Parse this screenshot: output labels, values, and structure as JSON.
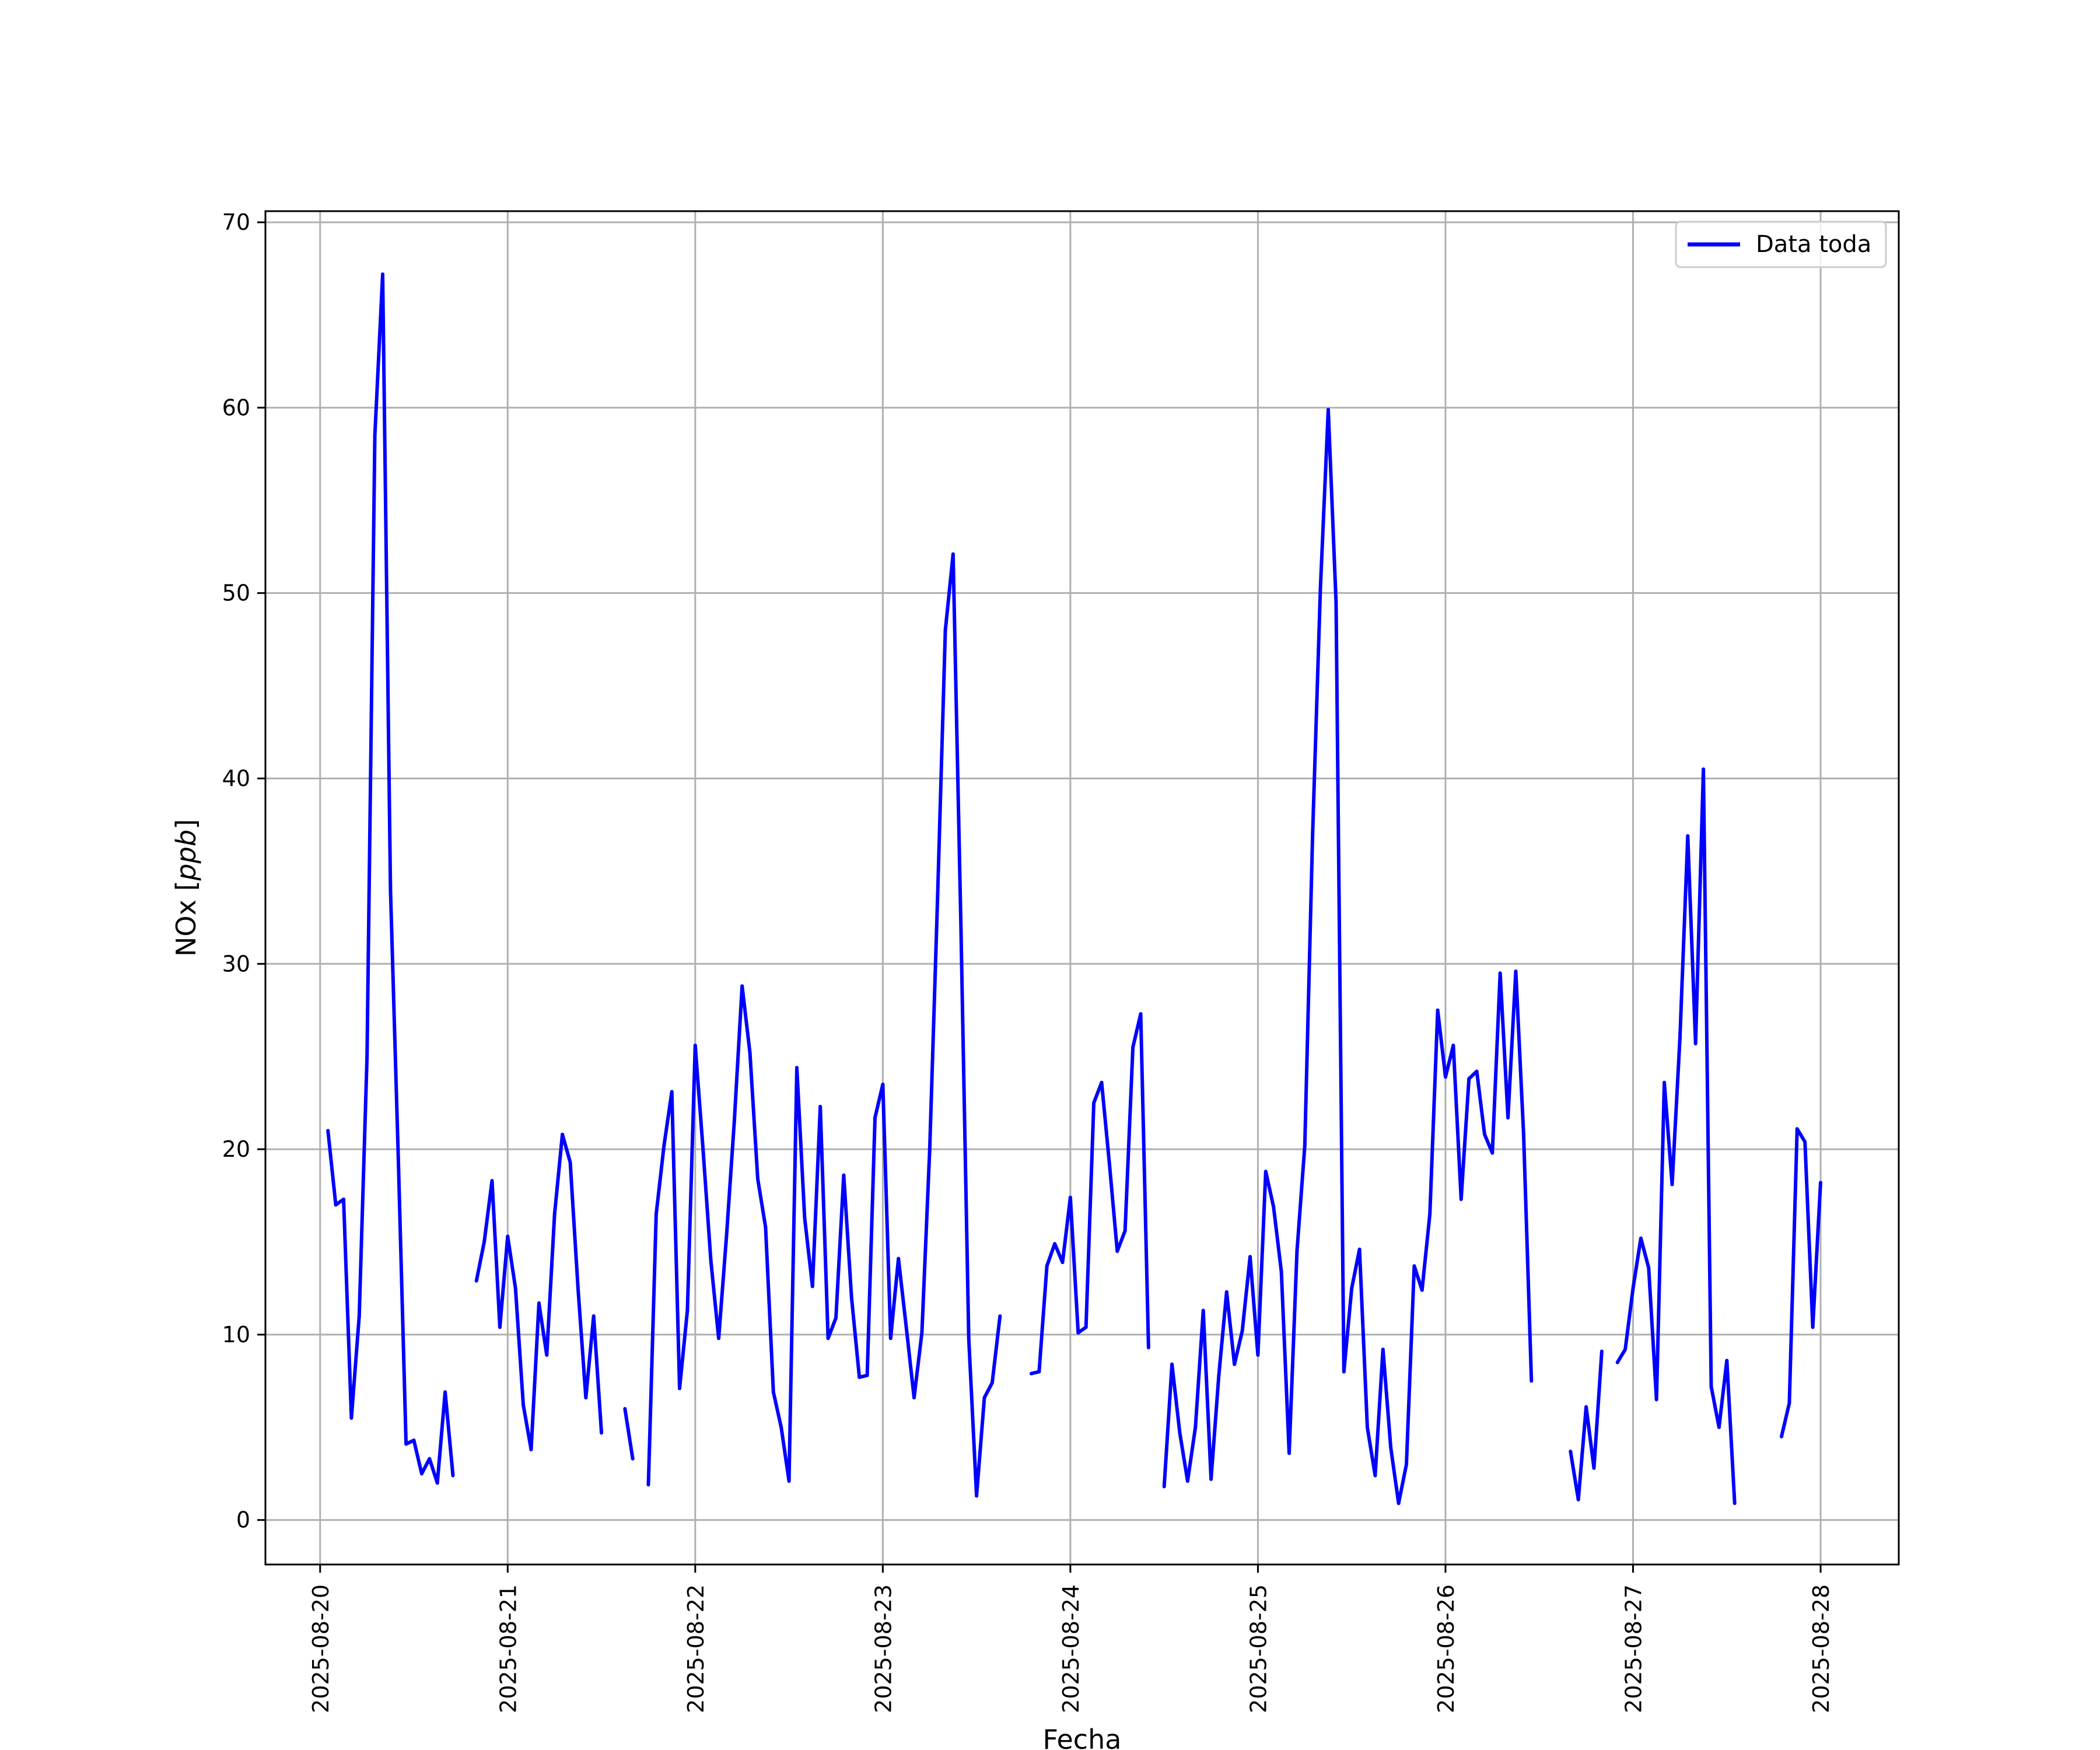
{
  "chart_data": {
    "type": "line",
    "title": "",
    "xlabel": "Fecha",
    "ylabel_text": "NOx [",
    "ylabel_unit": "ppb",
    "ylabel_close": "]",
    "x_ticks": [
      "2025-08-20",
      "2025-08-21",
      "2025-08-22",
      "2025-08-23",
      "2025-08-24",
      "2025-08-25",
      "2025-08-26",
      "2025-08-27",
      "2025-08-28"
    ],
    "y_ticks": [
      "0",
      "10",
      "20",
      "30",
      "40",
      "50",
      "60",
      "70"
    ],
    "xlim": [
      "2025-08-19T17:00",
      "2025-08-28T10:00"
    ],
    "ylim": [
      -2.4,
      70.6
    ],
    "grid": true,
    "legend": {
      "position": "top-right",
      "entries": [
        "Data toda"
      ]
    },
    "series": [
      {
        "name": "Data toda",
        "color": "#0000ff",
        "segments": [
          [
            [
              "2025-08-20T01:00",
              21.0
            ],
            [
              "2025-08-20T02:00",
              17.0
            ],
            [
              "2025-08-20T03:00",
              17.3
            ],
            [
              "2025-08-20T04:00",
              5.5
            ],
            [
              "2025-08-20T05:00",
              11.0
            ],
            [
              "2025-08-20T06:00",
              25.0
            ],
            [
              "2025-08-20T07:00",
              58.5
            ],
            [
              "2025-08-20T08:00",
              67.2
            ],
            [
              "2025-08-20T09:00",
              34.0
            ],
            [
              "2025-08-20T10:00",
              19.5
            ],
            [
              "2025-08-20T11:00",
              4.1
            ],
            [
              "2025-08-20T12:00",
              4.3
            ],
            [
              "2025-08-20T13:00",
              2.5
            ],
            [
              "2025-08-20T14:00",
              3.3
            ],
            [
              "2025-08-20T15:00",
              2.0
            ],
            [
              "2025-08-20T16:00",
              6.9
            ],
            [
              "2025-08-20T17:00",
              2.4
            ]
          ],
          [
            [
              "2025-08-20T20:00",
              12.9
            ],
            [
              "2025-08-20T21:00",
              15.0
            ],
            [
              "2025-08-20T22:00",
              18.3
            ],
            [
              "2025-08-20T23:00",
              10.4
            ],
            [
              "2025-08-21T00:00",
              15.3
            ],
            [
              "2025-08-21T01:00",
              12.5
            ],
            [
              "2025-08-21T02:00",
              6.2
            ],
            [
              "2025-08-21T03:00",
              3.8
            ],
            [
              "2025-08-21T04:00",
              11.7
            ],
            [
              "2025-08-21T05:00",
              8.9
            ],
            [
              "2025-08-21T06:00",
              16.5
            ],
            [
              "2025-08-21T07:00",
              20.8
            ],
            [
              "2025-08-21T08:00",
              19.3
            ],
            [
              "2025-08-21T09:00",
              12.5
            ],
            [
              "2025-08-21T10:00",
              6.6
            ],
            [
              "2025-08-21T11:00",
              11.0
            ],
            [
              "2025-08-21T12:00",
              4.7
            ]
          ],
          [
            [
              "2025-08-21T15:00",
              6.0
            ],
            [
              "2025-08-21T16:00",
              3.3
            ]
          ],
          [
            [
              "2025-08-21T18:00",
              1.9
            ],
            [
              "2025-08-21T19:00",
              16.5
            ],
            [
              "2025-08-21T20:00",
              20.2
            ],
            [
              "2025-08-21T21:00",
              23.1
            ],
            [
              "2025-08-21T22:00",
              7.1
            ],
            [
              "2025-08-21T23:00",
              11.3
            ],
            [
              "2025-08-22T00:00",
              25.6
            ],
            [
              "2025-08-22T01:00",
              20.0
            ],
            [
              "2025-08-22T02:00",
              14.0
            ],
            [
              "2025-08-22T03:00",
              9.8
            ],
            [
              "2025-08-22T04:00",
              15.3
            ],
            [
              "2025-08-22T05:00",
              21.5
            ],
            [
              "2025-08-22T06:00",
              28.8
            ],
            [
              "2025-08-22T07:00",
              25.2
            ],
            [
              "2025-08-22T08:00",
              18.4
            ],
            [
              "2025-08-22T09:00",
              15.8
            ],
            [
              "2025-08-22T10:00",
              6.9
            ],
            [
              "2025-08-22T11:00",
              5.0
            ],
            [
              "2025-08-22T12:00",
              2.1
            ],
            [
              "2025-08-22T13:00",
              24.4
            ],
            [
              "2025-08-22T14:00",
              16.3
            ],
            [
              "2025-08-22T15:00",
              12.6
            ],
            [
              "2025-08-22T16:00",
              22.3
            ],
            [
              "2025-08-22T17:00",
              9.8
            ],
            [
              "2025-08-22T18:00",
              10.9
            ],
            [
              "2025-08-22T19:00",
              18.6
            ],
            [
              "2025-08-22T20:00",
              12.0
            ],
            [
              "2025-08-22T21:00",
              7.7
            ],
            [
              "2025-08-22T22:00",
              7.8
            ],
            [
              "2025-08-22T23:00",
              21.7
            ],
            [
              "2025-08-23T00:00",
              23.5
            ],
            [
              "2025-08-23T01:00",
              9.8
            ],
            [
              "2025-08-23T02:00",
              14.1
            ],
            [
              "2025-08-23T03:00",
              10.4
            ],
            [
              "2025-08-23T04:00",
              6.6
            ],
            [
              "2025-08-23T05:00",
              10.1
            ],
            [
              "2025-08-23T06:00",
              20.0
            ],
            [
              "2025-08-23T07:00",
              33.5
            ],
            [
              "2025-08-23T08:00",
              48.0
            ],
            [
              "2025-08-23T09:00",
              52.1
            ],
            [
              "2025-08-23T10:00",
              32.0
            ],
            [
              "2025-08-23T11:00",
              9.8
            ],
            [
              "2025-08-23T12:00",
              1.3
            ],
            [
              "2025-08-23T13:00",
              6.6
            ],
            [
              "2025-08-23T14:00",
              7.4
            ],
            [
              "2025-08-23T15:00",
              11.0
            ]
          ],
          [
            [
              "2025-08-23T19:00",
              7.9
            ],
            [
              "2025-08-23T20:00",
              8.0
            ],
            [
              "2025-08-23T21:00",
              13.7
            ],
            [
              "2025-08-23T22:00",
              14.9
            ],
            [
              "2025-08-23T23:00",
              13.9
            ],
            [
              "2025-08-24T00:00",
              17.4
            ],
            [
              "2025-08-24T01:00",
              10.1
            ],
            [
              "2025-08-24T02:00",
              10.4
            ],
            [
              "2025-08-24T03:00",
              22.5
            ],
            [
              "2025-08-24T04:00",
              23.6
            ],
            [
              "2025-08-24T05:00",
              19.2
            ],
            [
              "2025-08-24T06:00",
              14.5
            ],
            [
              "2025-08-24T07:00",
              15.6
            ],
            [
              "2025-08-24T08:00",
              25.5
            ],
            [
              "2025-08-24T09:00",
              27.3
            ],
            [
              "2025-08-24T10:00",
              9.3
            ]
          ],
          [
            [
              "2025-08-24T12:00",
              1.8
            ],
            [
              "2025-08-24T13:00",
              8.4
            ],
            [
              "2025-08-24T14:00",
              4.7
            ],
            [
              "2025-08-24T15:00",
              2.1
            ],
            [
              "2025-08-24T16:00",
              5.0
            ],
            [
              "2025-08-24T17:00",
              11.3
            ],
            [
              "2025-08-24T18:00",
              2.2
            ],
            [
              "2025-08-24T19:00",
              7.8
            ],
            [
              "2025-08-24T20:00",
              12.3
            ],
            [
              "2025-08-24T21:00",
              8.4
            ],
            [
              "2025-08-24T22:00",
              10.2
            ],
            [
              "2025-08-24T23:00",
              14.2
            ],
            [
              "2025-08-25T00:00",
              8.9
            ],
            [
              "2025-08-25T01:00",
              18.8
            ],
            [
              "2025-08-25T02:00",
              16.9
            ],
            [
              "2025-08-25T03:00",
              13.4
            ],
            [
              "2025-08-25T04:00",
              3.6
            ],
            [
              "2025-08-25T05:00",
              14.5
            ],
            [
              "2025-08-25T06:00",
              20.2
            ],
            [
              "2025-08-25T07:00",
              37.0
            ],
            [
              "2025-08-25T08:00",
              50.3
            ],
            [
              "2025-08-25T09:00",
              59.9
            ],
            [
              "2025-08-25T10:00",
              49.5
            ],
            [
              "2025-08-25T11:00",
              8.0
            ],
            [
              "2025-08-25T12:00",
              12.5
            ],
            [
              "2025-08-25T13:00",
              14.6
            ],
            [
              "2025-08-25T14:00",
              5.0
            ],
            [
              "2025-08-25T15:00",
              2.4
            ],
            [
              "2025-08-25T16:00",
              9.2
            ],
            [
              "2025-08-25T17:00",
              3.9
            ],
            [
              "2025-08-25T18:00",
              0.9
            ],
            [
              "2025-08-25T19:00",
              3.0
            ],
            [
              "2025-08-25T20:00",
              13.7
            ],
            [
              "2025-08-25T21:00",
              12.4
            ],
            [
              "2025-08-25T22:00",
              16.5
            ],
            [
              "2025-08-25T23:00",
              27.5
            ],
            [
              "2025-08-26T00:00",
              23.9
            ],
            [
              "2025-08-26T01:00",
              25.6
            ],
            [
              "2025-08-26T02:00",
              17.3
            ],
            [
              "2025-08-26T03:00",
              23.8
            ],
            [
              "2025-08-26T04:00",
              24.2
            ],
            [
              "2025-08-26T05:00",
              20.8
            ],
            [
              "2025-08-26T06:00",
              19.8
            ],
            [
              "2025-08-26T07:00",
              29.5
            ],
            [
              "2025-08-26T08:00",
              21.7
            ],
            [
              "2025-08-26T09:00",
              29.6
            ],
            [
              "2025-08-26T10:00",
              20.8
            ],
            [
              "2025-08-26T11:00",
              7.5
            ]
          ],
          [
            [
              "2025-08-26T16:00",
              3.7
            ],
            [
              "2025-08-26T17:00",
              1.1
            ],
            [
              "2025-08-26T18:00",
              6.1
            ],
            [
              "2025-08-26T19:00",
              2.8
            ],
            [
              "2025-08-26T20:00",
              9.1
            ]
          ],
          [
            [
              "2025-08-26T22:00",
              8.5
            ],
            [
              "2025-08-26T23:00",
              9.2
            ],
            [
              "2025-08-27T00:00",
              12.5
            ],
            [
              "2025-08-27T01:00",
              15.2
            ],
            [
              "2025-08-27T02:00",
              13.6
            ],
            [
              "2025-08-27T03:00",
              6.5
            ],
            [
              "2025-08-27T04:00",
              23.6
            ],
            [
              "2025-08-27T05:00",
              18.1
            ],
            [
              "2025-08-27T06:00",
              26.0
            ],
            [
              "2025-08-27T07:00",
              36.9
            ],
            [
              "2025-08-27T08:00",
              25.7
            ],
            [
              "2025-08-27T09:00",
              40.5
            ],
            [
              "2025-08-27T10:00",
              7.2
            ],
            [
              "2025-08-27T11:00",
              5.0
            ],
            [
              "2025-08-27T12:00",
              8.6
            ],
            [
              "2025-08-27T13:00",
              0.9
            ]
          ],
          [
            [
              "2025-08-27T19:00",
              4.5
            ],
            [
              "2025-08-27T20:00",
              6.3
            ],
            [
              "2025-08-27T21:00",
              21.1
            ],
            [
              "2025-08-27T22:00",
              20.4
            ],
            [
              "2025-08-27T23:00",
              10.4
            ],
            [
              "2025-08-28T00:00",
              18.2
            ]
          ]
        ]
      }
    ]
  }
}
